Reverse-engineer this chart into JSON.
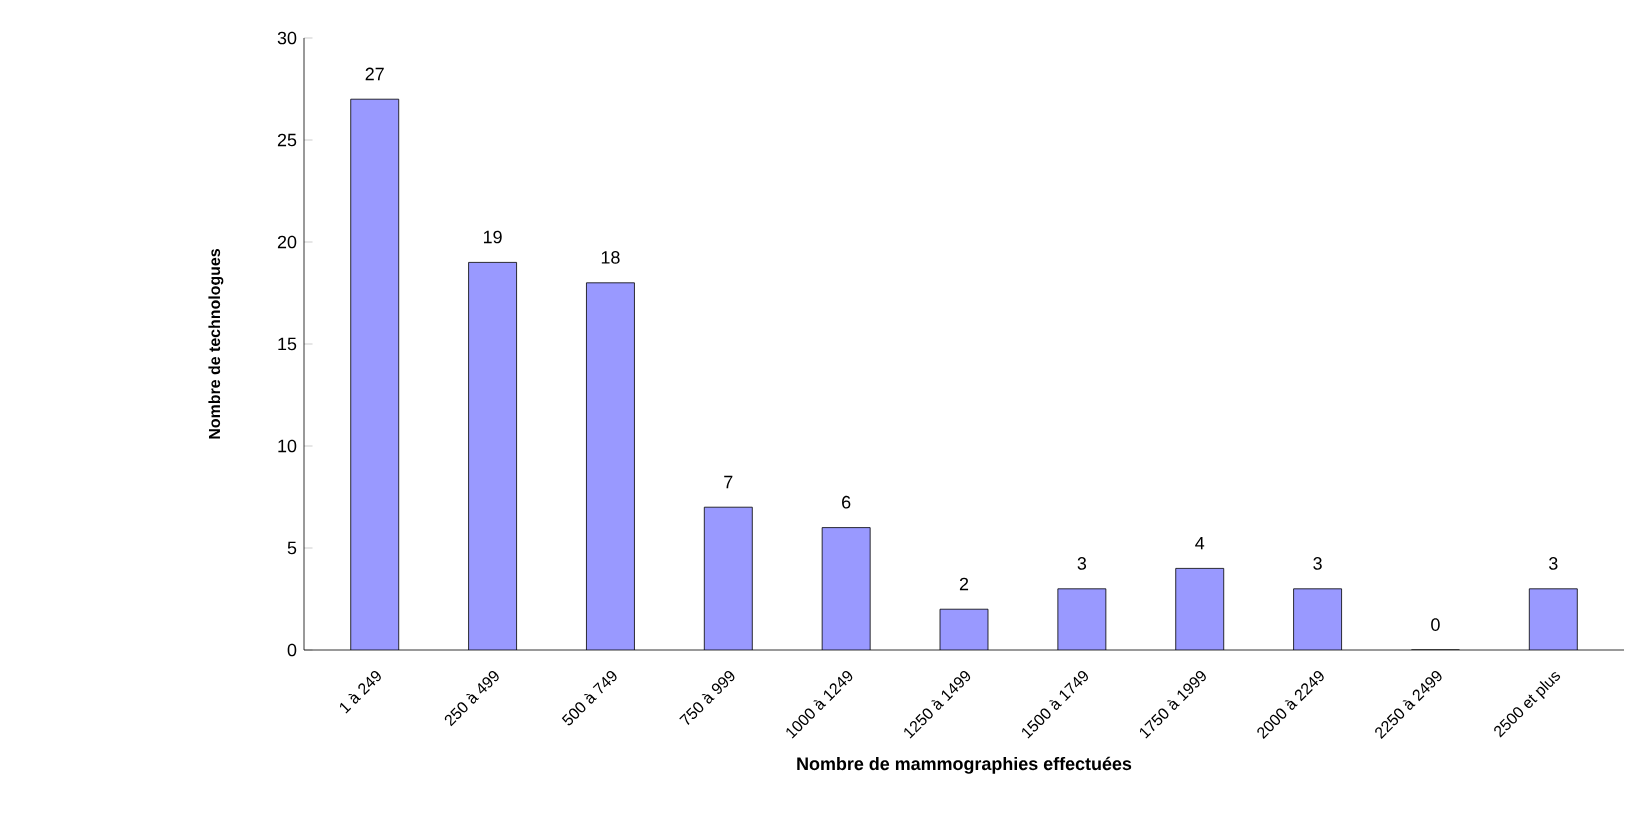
{
  "chart_data": {
    "type": "bar",
    "xlabel": "Nombre de mammographies effectuées",
    "ylabel": "Nombre de technologues",
    "categories": [
      "1 à 249",
      "250 à 499",
      "500 à 749",
      "750 à 999",
      "1000 à 1249",
      "1250 à 1499",
      "1500 à 1749",
      "1750 à 1999",
      "2000 à 2249",
      "2250 à 2499",
      "2500 et plus"
    ],
    "values": [
      27,
      19,
      18,
      7,
      6,
      2,
      3,
      4,
      3,
      0,
      3
    ],
    "color": "#9999ff",
    "ylim": [
      0,
      30
    ],
    "yticks": [
      0,
      5,
      10,
      15,
      20,
      25,
      30
    ],
    "data_labels": true,
    "grid": false
  }
}
